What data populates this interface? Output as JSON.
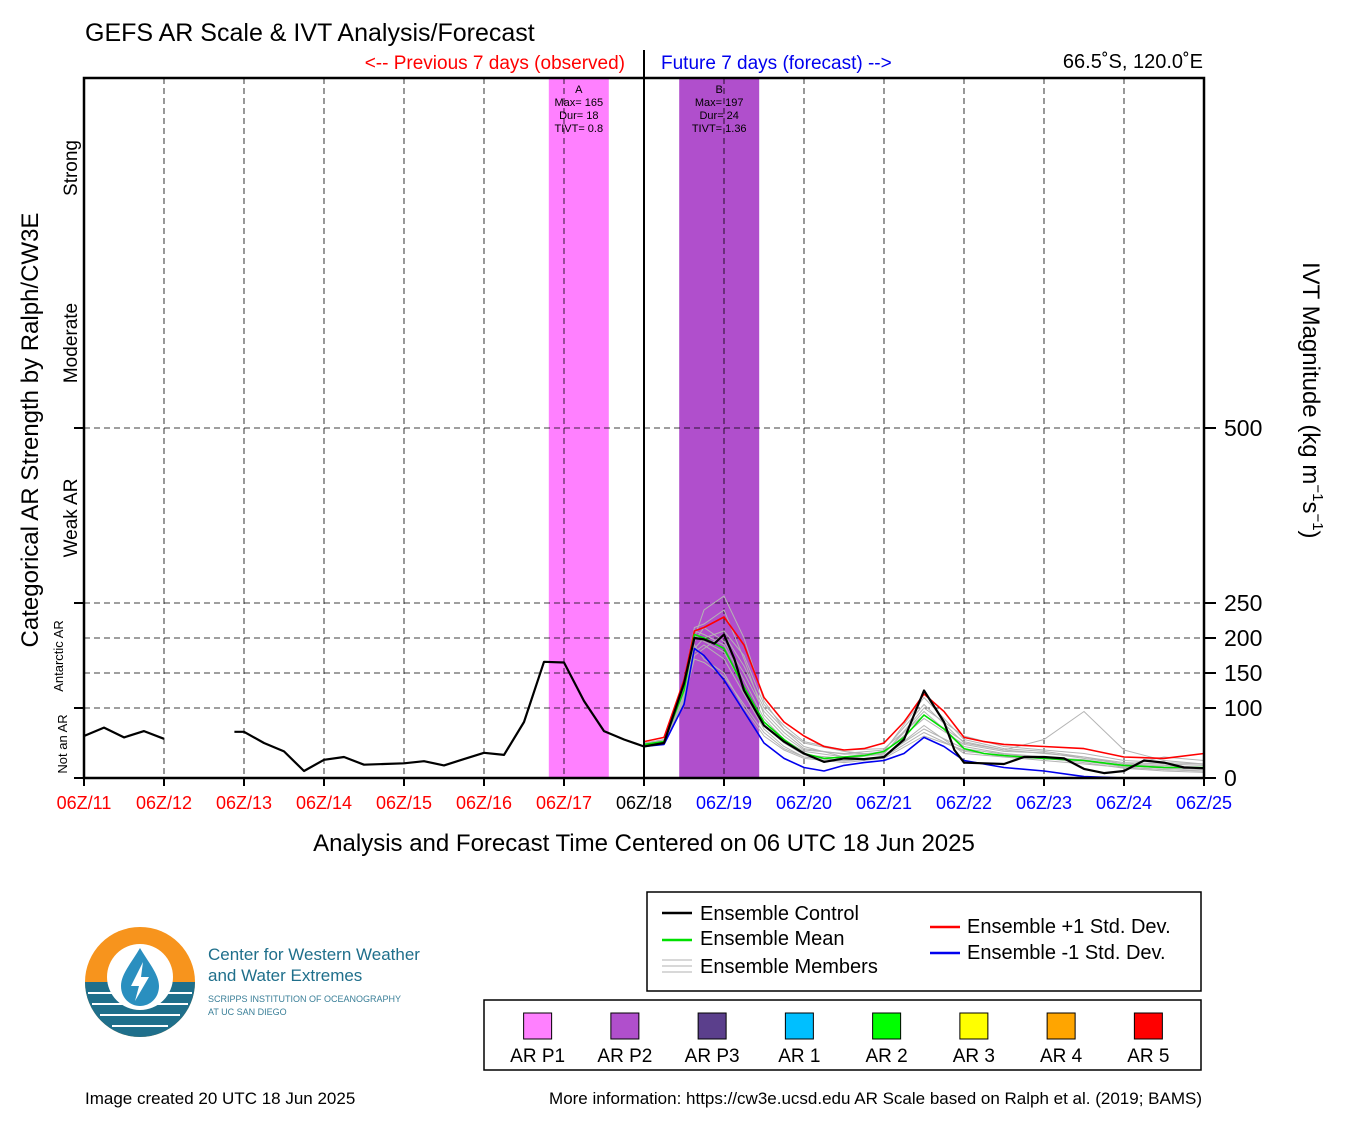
{
  "chart_data": {
    "type": "line",
    "title": "GEFS AR Scale & IVT Analysis/Forecast",
    "subtitle_left": "<-- Previous 7 days (observed)",
    "subtitle_right": "Future 7 days (forecast) -->",
    "location": "66.5˚S, 120.0˚E",
    "xlabel": "Analysis and Forecast Time Centered on 06 UTC 18 Jun 2025",
    "ylabel_left": "Categorical AR Strength by Ralph/CW3E",
    "ylabel_right": "IVT Magnitude (kg m",
    "ylabel_right_exp1": "−1",
    "ylabel_right_mid": "s",
    "ylabel_right_exp2": "−1",
    "ylabel_right_close": ")",
    "category_labels": [
      "Not an AR",
      "Antarctic AR",
      "Weak AR",
      "Moderate",
      "Strong"
    ],
    "ylim": [
      0,
      1000
    ],
    "y_ticks": [
      0,
      100,
      150,
      200,
      250,
      500
    ],
    "x_ticks": [
      "06Z/11",
      "06Z/12",
      "06Z/13",
      "06Z/14",
      "06Z/15",
      "06Z/16",
      "06Z/17",
      "06Z/18",
      "06Z/19",
      "06Z/20",
      "06Z/21",
      "06Z/22",
      "06Z/23",
      "06Z/24",
      "06Z/25"
    ],
    "x_tick_colors": [
      "#ff0000",
      "#ff0000",
      "#ff0000",
      "#ff0000",
      "#ff0000",
      "#ff0000",
      "#ff0000",
      "#000000",
      "#0000ff",
      "#0000ff",
      "#0000ff",
      "#0000ff",
      "#0000ff",
      "#0000ff",
      "#0000ff"
    ],
    "xlim_days": [
      0,
      14
    ],
    "analysis_day": 7,
    "x_grid": true,
    "ar_events": [
      {
        "label": "A",
        "max": "Max= 165",
        "dur": "Dur= 18",
        "tivt": "TIVT= 0.8",
        "start_day": 5.81,
        "end_day": 6.56,
        "color": "#ff80ff"
      },
      {
        "label": "B",
        "max": "Max= 197",
        "dur": "Dur= 24",
        "tivt": "TIVT= 1.36",
        "start_day": 7.44,
        "end_day": 8.44,
        "color": "#b04fcc"
      }
    ],
    "series": [
      {
        "name": "Ensemble Control",
        "color": "#000000",
        "segments": [
          {
            "x": [
              0,
              0.25,
              0.5,
              0.75,
              1.0
            ],
            "y": [
              60,
              72,
              58,
              67,
              56
            ]
          },
          {
            "x": [
              1.88,
              2.0,
              2.25,
              2.5,
              2.75,
              3.0,
              3.25,
              3.5,
              3.75,
              4.0,
              4.25,
              4.5,
              4.75,
              5.0,
              5.25,
              5.5,
              5.75,
              6.0,
              6.25,
              6.5,
              6.75,
              7.0,
              7.25,
              7.5,
              7.63,
              7.75,
              7.88,
              8.0,
              8.13,
              8.25,
              8.5,
              8.75,
              9.0,
              9.25,
              9.5,
              9.75,
              10.0,
              10.25,
              10.5,
              10.75,
              10.88,
              11.0,
              11.25,
              11.5,
              11.75,
              12.0,
              12.25,
              12.5,
              12.75,
              13.0,
              13.25,
              13.5,
              13.75,
              14.0
            ],
            "y": [
              66,
              66,
              50,
              38,
              10,
              26,
              30,
              19,
              20,
              21,
              24,
              18,
              27,
              36,
              33,
              80,
              166,
              165,
              110,
              67,
              55,
              45,
              50,
              135,
              200,
              198,
              192,
              205,
              170,
              125,
              75,
              52,
              35,
              23,
              28,
              27,
              30,
              55,
              125,
              80,
              40,
              22,
              21,
              20,
              30,
              30,
              28,
              13,
              7,
              10,
              25,
              22,
              15,
              14
            ]
          }
        ]
      },
      {
        "name": "Ensemble Mean",
        "color": "#00e000",
        "segments": [
          {
            "x": [
              7.0,
              7.25,
              7.5,
              7.63,
              7.75,
              8.0,
              8.25,
              8.5,
              8.75,
              9.0,
              9.25,
              9.5,
              9.75,
              10.0,
              10.25,
              10.5,
              10.75,
              11.0,
              11.25,
              11.5,
              12.0,
              12.5,
              13.0,
              13.5,
              14.0
            ],
            "y": [
              48,
              52,
              125,
              205,
              200,
              185,
              130,
              80,
              55,
              35,
              28,
              30,
              32,
              38,
              58,
              90,
              70,
              42,
              35,
              32,
              28,
              25,
              18,
              15,
              15
            ]
          }
        ]
      },
      {
        "name": "Ensemble +1 Std. Dev.",
        "color": "#ff0000",
        "segments": [
          {
            "x": [
              7.0,
              7.25,
              7.5,
              7.63,
              7.75,
              8.0,
              8.25,
              8.5,
              8.75,
              9.0,
              9.25,
              9.5,
              9.75,
              10.0,
              10.25,
              10.5,
              10.75,
              11.0,
              11.25,
              11.5,
              12.0,
              12.5,
              13.0,
              13.5,
              14.0
            ],
            "y": [
              52,
              58,
              140,
              210,
              215,
              230,
              190,
              115,
              80,
              60,
              45,
              40,
              42,
              50,
              80,
              120,
              95,
              58,
              52,
              48,
              45,
              42,
              30,
              28,
              35
            ]
          }
        ]
      },
      {
        "name": "Ensemble -1 Std. Dev.",
        "color": "#0000ee",
        "segments": [
          {
            "x": [
              7.0,
              7.25,
              7.5,
              7.63,
              7.75,
              8.0,
              8.25,
              8.5,
              8.75,
              9.0,
              9.25,
              9.5,
              9.75,
              10.0,
              10.25,
              10.5,
              10.75,
              11.0,
              11.5,
              12.0,
              12.5,
              13.0
            ],
            "y": [
              45,
              48,
              105,
              185,
              175,
              140,
              95,
              50,
              28,
              15,
              10,
              18,
              22,
              25,
              35,
              58,
              45,
              25,
              15,
              10,
              2,
              0
            ]
          }
        ]
      }
    ],
    "members": [
      {
        "x": [
          7.0,
          7.25,
          7.5,
          7.63,
          7.75,
          8.0,
          8.25,
          8.5,
          8.75,
          9.0,
          9.5,
          10.0,
          10.5,
          11.0,
          11.5,
          12.0,
          12.5,
          13.0,
          13.5,
          14.0
        ],
        "y": [
          50,
          55,
          140,
          215,
          220,
          240,
          170,
          90,
          60,
          40,
          35,
          40,
          105,
          50,
          40,
          35,
          30,
          20,
          18,
          15
        ]
      },
      {
        "x": [
          7.0,
          7.25,
          7.5,
          7.63,
          7.75,
          8.0,
          8.25,
          8.5,
          8.75,
          9.0,
          9.5,
          10.0,
          10.5,
          11.0,
          11.5,
          12.0,
          12.5,
          13.0,
          13.5,
          14.0
        ],
        "y": [
          47,
          50,
          110,
          180,
          190,
          170,
          120,
          70,
          45,
          30,
          25,
          30,
          75,
          35,
          30,
          25,
          20,
          15,
          12,
          10
        ]
      },
      {
        "x": [
          7.0,
          7.25,
          7.5,
          7.63,
          7.75,
          8.0,
          8.25,
          8.5,
          8.75,
          9.0,
          9.5,
          10.0,
          10.5,
          11.0,
          11.5,
          12.0,
          12.5,
          13.0,
          13.5,
          14.0
        ],
        "y": [
          49,
          53,
          130,
          200,
          240,
          260,
          200,
          110,
          70,
          45,
          30,
          35,
          95,
          45,
          35,
          30,
          25,
          18,
          30,
          25
        ]
      },
      {
        "x": [
          7.0,
          7.25,
          7.5,
          7.63,
          7.75,
          8.0,
          8.25,
          8.5,
          8.75,
          9.0,
          9.5,
          10.0,
          10.5,
          11.0,
          11.5,
          12.0,
          12.5,
          13.0,
          13.5,
          14.0
        ],
        "y": [
          46,
          49,
          120,
          190,
          170,
          150,
          100,
          60,
          40,
          28,
          22,
          28,
          60,
          40,
          30,
          28,
          22,
          14,
          10,
          8
        ]
      },
      {
        "x": [
          7.0,
          7.25,
          7.5,
          7.63,
          7.75,
          8.0,
          8.25,
          8.5,
          8.75,
          9.0,
          9.5,
          10.0,
          10.5,
          11.0,
          11.5,
          12.0,
          12.5,
          13.0,
          13.5,
          14.0
        ],
        "y": [
          48,
          52,
          135,
          210,
          205,
          190,
          140,
          85,
          55,
          38,
          30,
          38,
          115,
          55,
          42,
          38,
          30,
          22,
          20,
          18
        ]
      },
      {
        "x": [
          7.0,
          7.25,
          7.5,
          7.63,
          7.75,
          8.0,
          8.25,
          8.5,
          8.75,
          9.0,
          9.5,
          10.0,
          10.5,
          11.0,
          11.5,
          12.0,
          12.5,
          13.0,
          13.5,
          14.0
        ],
        "y": [
          50,
          54,
          125,
          195,
          215,
          195,
          150,
          95,
          65,
          42,
          34,
          36,
          85,
          48,
          38,
          36,
          28,
          20,
          16,
          14
        ]
      },
      {
        "x": [
          7.0,
          7.25,
          7.5,
          7.63,
          7.75,
          8.0,
          8.25,
          8.5,
          8.75,
          9.0,
          9.5,
          10.0,
          10.5,
          11.0,
          11.5,
          12.0,
          12.5,
          13.0,
          13.5,
          14.0
        ],
        "y": [
          47,
          51,
          115,
          175,
          185,
          205,
          160,
          100,
          70,
          50,
          38,
          32,
          70,
          42,
          34,
          30,
          26,
          18,
          14,
          12
        ]
      },
      {
        "x": [
          7.0,
          7.25,
          7.5,
          7.63,
          7.75,
          8.0,
          8.25,
          8.5,
          8.75,
          9.0,
          9.5,
          10.0,
          10.5,
          11.0,
          11.5,
          12.0,
          12.5,
          13.0,
          13.5,
          14.0
        ],
        "y": [
          49,
          52,
          128,
          205,
          195,
          180,
          130,
          75,
          50,
          33,
          28,
          34,
          100,
          60,
          45,
          40,
          35,
          25,
          22,
          20
        ]
      },
      {
        "x": [
          7.0,
          7.25,
          7.5,
          7.63,
          7.75,
          8.0,
          8.25,
          8.5,
          8.75,
          9.0,
          9.5,
          10.0,
          10.5,
          11.0,
          11.5,
          12.0,
          12.5,
          13.0,
          13.5,
          14.0
        ],
        "y": [
          48,
          50,
          118,
          185,
          200,
          210,
          175,
          105,
          75,
          52,
          40,
          42,
          90,
          52,
          40,
          55,
          95,
          40,
          25,
          20
        ]
      },
      {
        "x": [
          7.0,
          7.25,
          7.5,
          7.63,
          7.75,
          8.0,
          8.25,
          8.5,
          8.75,
          9.0,
          9.5,
          10.0,
          10.5,
          11.0,
          11.5,
          12.0,
          12.5,
          13.0,
          13.5,
          14.0
        ],
        "y": [
          46,
          48,
          112,
          170,
          165,
          145,
          105,
          65,
          42,
          30,
          24,
          30,
          65,
          38,
          32,
          30,
          24,
          16,
          12,
          10
        ]
      }
    ]
  },
  "legend": {
    "items": [
      {
        "label": "Ensemble Control",
        "color": "#000000"
      },
      {
        "label": "Ensemble Mean",
        "color": "#00e000"
      },
      {
        "label": "Ensemble Members",
        "color": "#b0b0b0"
      },
      {
        "label": "Ensemble +1 Std. Dev.",
        "color": "#ff0000"
      },
      {
        "label": "Ensemble -1 Std. Dev.",
        "color": "#0000ee"
      }
    ]
  },
  "ar_scale_legend": [
    {
      "label": "AR P1",
      "color": "#ff80ff"
    },
    {
      "label": "AR P2",
      "color": "#b04fcc"
    },
    {
      "label": "AR P3",
      "color": "#5b3f8c"
    },
    {
      "label": "AR 1",
      "color": "#00bfff"
    },
    {
      "label": "AR 2",
      "color": "#00ff00"
    },
    {
      "label": "AR 3",
      "color": "#ffff00"
    },
    {
      "label": "AR 4",
      "color": "#ffa500"
    },
    {
      "label": "AR 5",
      "color": "#ff0000"
    }
  ],
  "logo": {
    "line1": "Center for Western Weather",
    "line2": "and Water Extremes",
    "line3": "SCRIPPS INSTITUTION OF OCEANOGRAPHY",
    "line4": "AT UC SAN DIEGO"
  },
  "footer": {
    "created": "Image created 20 UTC 18 Jun 2025",
    "info": "More information: https://cw3e.ucsd.edu AR Scale based on Ralph et al. (2019; BAMS)"
  }
}
